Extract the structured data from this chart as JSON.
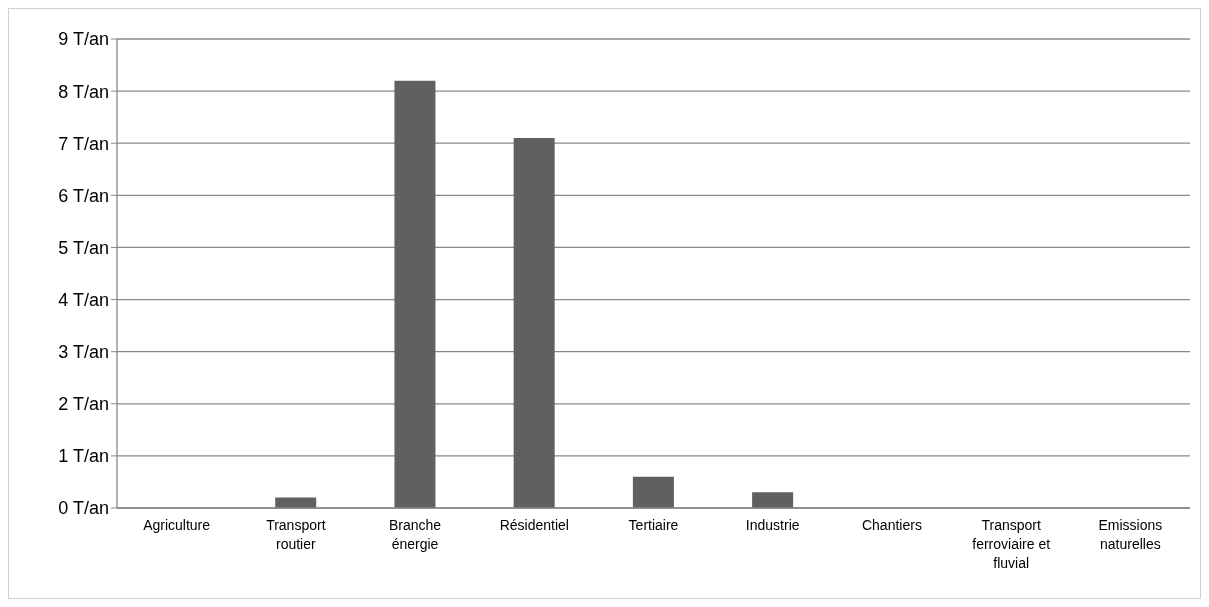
{
  "chart_data": {
    "type": "bar",
    "categories": [
      "Agriculture",
      "Transport routier",
      "Branche énergie",
      "Résidentiel",
      "Tertiaire",
      "Industrie",
      "Chantiers",
      "Transport ferroviaire et fluvial",
      "Emissions naturelles"
    ],
    "values": [
      0,
      0.2,
      8.2,
      7.1,
      0.6,
      0.3,
      0,
      0,
      0
    ],
    "color": "#606060",
    "ylim": [
      0,
      9
    ],
    "yticks": [
      {
        "value": 0,
        "label": "0 T/an"
      },
      {
        "value": 1,
        "label": "1 T/an"
      },
      {
        "value": 2,
        "label": "2 T/an"
      },
      {
        "value": 3,
        "label": "3 T/an"
      },
      {
        "value": 4,
        "label": "4 T/an"
      },
      {
        "value": 5,
        "label": "5 T/an"
      },
      {
        "value": 6,
        "label": "6 T/an"
      },
      {
        "value": 7,
        "label": "7 T/an"
      },
      {
        "value": 8,
        "label": "8 T/an"
      },
      {
        "value": 9,
        "label": "9 T/an"
      }
    ],
    "grid": "y"
  }
}
